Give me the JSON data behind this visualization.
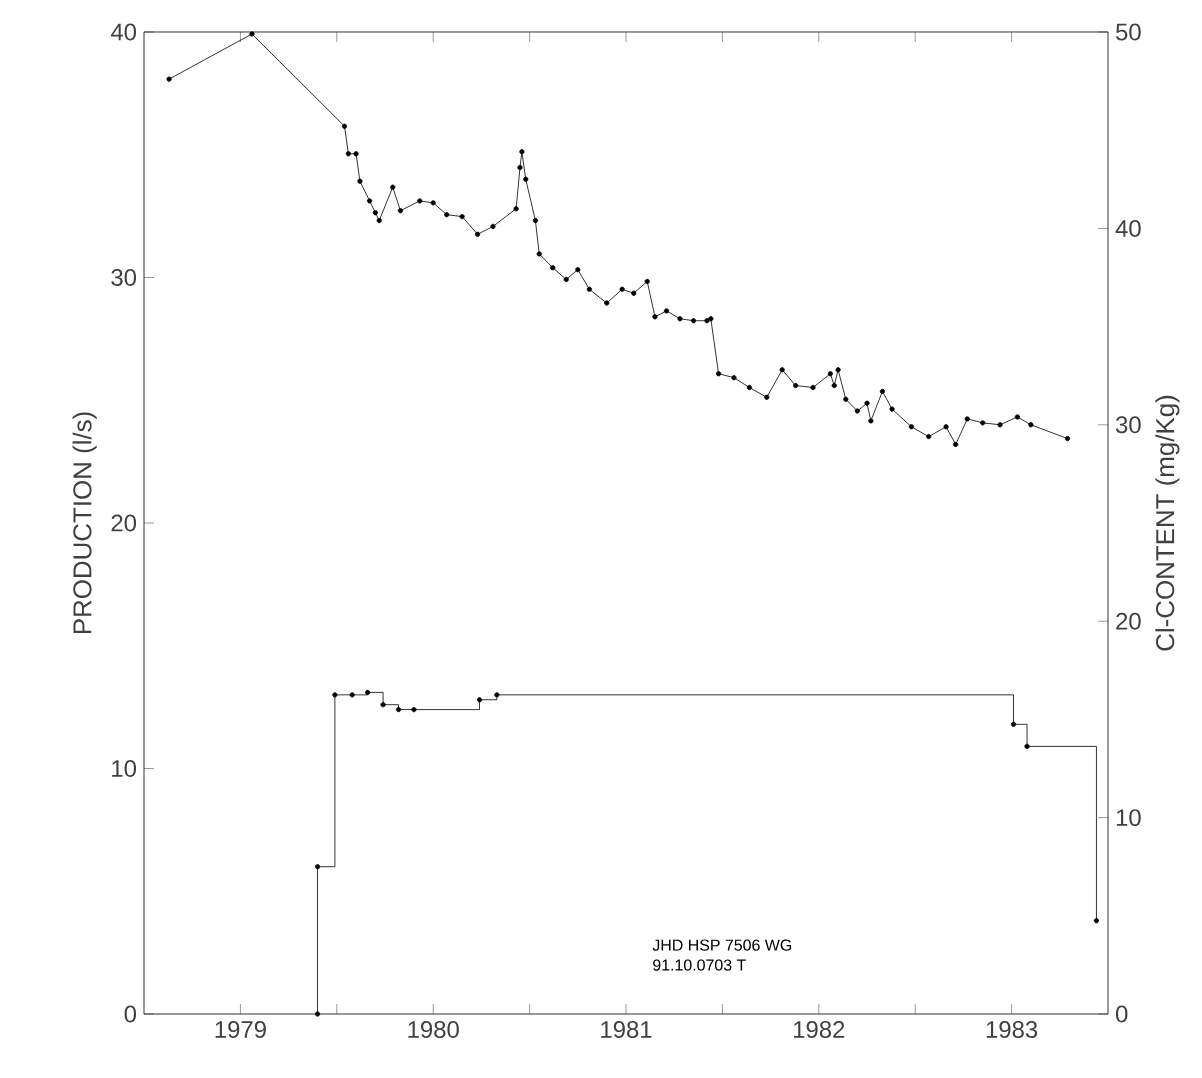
{
  "chart_data": {
    "type": "line",
    "ylabel": "PRODUCTION  (l/s)",
    "y2label": "Cl-CONTENT  (mg/Kg)",
    "xlim": [
      1979,
      1984
    ],
    "ylim": [
      0,
      40
    ],
    "y2lim": [
      0,
      50
    ],
    "xticks": [
      {
        "value": 1979.5,
        "label": "1979"
      },
      {
        "value": 1980,
        "label": null
      },
      {
        "value": 1980.5,
        "label": "1980"
      },
      {
        "value": 1981,
        "label": null
      },
      {
        "value": 1981.5,
        "label": "1981"
      },
      {
        "value": 1982,
        "label": null
      },
      {
        "value": 1982.5,
        "label": "1982"
      },
      {
        "value": 1983,
        "label": null
      },
      {
        "value": 1983.5,
        "label": "1983"
      }
    ],
    "yticks": [
      0,
      10,
      20,
      30,
      40
    ],
    "y2ticks": [
      0,
      10,
      20,
      30,
      40,
      50
    ],
    "marker": "circle",
    "grid": false,
    "legend": false,
    "series": [
      {
        "type": "step",
        "color": "#000000",
        "x": [
          1979.9,
          1979.9,
          1979.99,
          1980.08,
          1980.16,
          1980.24,
          1980.32,
          1980.4,
          1980.74,
          1980.83,
          1983.51,
          1983.58,
          1983.94
        ],
        "values": [
          0,
          6,
          13,
          13,
          13.1,
          12.6,
          12.4,
          12.4,
          12.8,
          13,
          11.8,
          10.9,
          3.8
        ]
      },
      {
        "axis": "y2",
        "color": "#000000",
        "x": [
          1979.13,
          1979.56,
          1980.04,
          1980.06,
          1980.1,
          1980.12,
          1980.17,
          1980.2,
          1980.22,
          1980.29,
          1980.33,
          1980.43,
          1980.5,
          1980.57,
          1980.65,
          1980.73,
          1980.81,
          1980.93,
          1980.95,
          1980.96,
          1980.98,
          1981.03,
          1981.05,
          1981.12,
          1981.19,
          1981.25,
          1981.31,
          1981.4,
          1981.48,
          1981.54,
          1981.61,
          1981.65,
          1981.71,
          1981.78,
          1981.85,
          1981.92,
          1981.94,
          1981.98,
          1982.06,
          1982.14,
          1982.23,
          1982.31,
          1982.38,
          1982.47,
          1982.56,
          1982.58,
          1982.6,
          1982.64,
          1982.7,
          1982.75,
          1982.77,
          1982.83,
          1982.88,
          1982.98,
          1983.07,
          1983.16,
          1983.21,
          1983.27,
          1983.35,
          1983.44,
          1983.53,
          1983.6,
          1983.79
        ],
        "values": [
          47.6,
          49.9,
          45.2,
          43.8,
          43.8,
          42.4,
          41.4,
          40.8,
          40.4,
          42.1,
          40.9,
          41.4,
          41.3,
          40.7,
          40.6,
          39.7,
          40.1,
          41.0,
          43.1,
          43.9,
          42.5,
          40.4,
          38.7,
          38.0,
          37.4,
          37.9,
          36.9,
          36.2,
          36.9,
          36.7,
          37.3,
          35.5,
          35.8,
          35.4,
          35.3,
          35.3,
          35.4,
          32.6,
          32.4,
          31.9,
          31.4,
          32.8,
          32.0,
          31.9,
          32.6,
          32.0,
          32.8,
          31.3,
          30.7,
          31.1,
          30.2,
          31.7,
          30.8,
          29.9,
          29.4,
          29.9,
          29.0,
          30.3,
          30.1,
          30.0,
          30.4,
          30.0,
          29.3
        ]
      }
    ],
    "annotations": [
      "JHD HSP 7506 WG",
      "91.10.0703 T"
    ]
  }
}
